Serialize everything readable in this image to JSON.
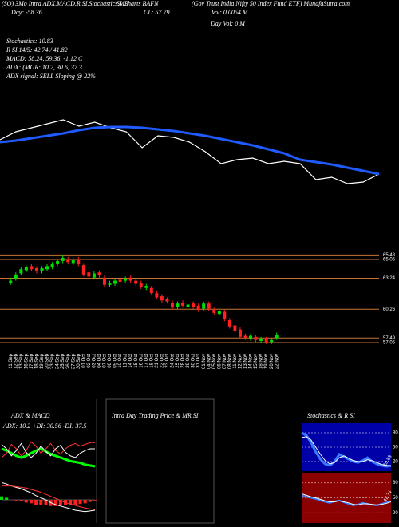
{
  "header": {
    "title_left": "(SO) 3Mo Intra ADX,MACD,R SI,Stochastics,MR",
    "title_mid": "SI Charts BAFN",
    "title_right": "(Gov Trust India Nifty 50 Index Fund ETF) MunafaSutra.com",
    "day": "Day: -58.36",
    "close": "CL: 57.79",
    "vol": "Vol: 0.0054 M",
    "day_vol": "Day Vol: 0  M"
  },
  "info": [
    "Stochastics: 10.83",
    "R SI 14/5: 42.74 / 41.82",
    "MACD: 58.24, 59.36, -1.12 C",
    "ADX:    (MGR: 10.2, 30.6, 37.3",
    "ADX  signal: SELL Sloping @ 22%"
  ],
  "panels": {
    "adx_title": "ADX & MACD",
    "intraday_title": "Intra Day Trading Price & MR SI",
    "stoch_title": "Stochastics & R SI"
  },
  "chart_data": [
    {
      "type": "line",
      "ylim": [
        0,
        130
      ],
      "series": [
        {
          "color": "#ffffff",
          "width": 1.2,
          "values": [
            85,
            95,
            100,
            105,
            110,
            102,
            107,
            100,
            95,
            75,
            90,
            88,
            82,
            70,
            55,
            60,
            62,
            55,
            58,
            55,
            35,
            38,
            30,
            32,
            42
          ]
        },
        {
          "color": "#1f5bff",
          "width": 3,
          "values": [
            82,
            84,
            87,
            90,
            93,
            97,
            100,
            101,
            101,
            100,
            98,
            96,
            93,
            90,
            86,
            82,
            78,
            73,
            68,
            60,
            57,
            54,
            50,
            46,
            42
          ]
        }
      ]
    },
    {
      "type": "candlestick",
      "ylim": [
        56.2,
        66.2
      ],
      "up_color": "#00e000",
      "down_color": "#ff2020",
      "level_color": "#c87533",
      "levels": [
        65.48,
        65.05,
        63.24,
        60.26,
        57.49,
        57.05
      ],
      "x": [
        "11 Sep",
        "12 Sep",
        "13 Sep",
        "16 Sep",
        "17 Sep",
        "18 Sep",
        "19 Sep",
        "20 Sep",
        "23 Sep",
        "24 Sep",
        "25 Sep",
        "26 Sep",
        "27 Sep",
        "30 Sep",
        "01 Oct",
        "02 Oct",
        "03 Oct",
        "04 Oct",
        "07 Oct",
        "08 Oct",
        "09 Oct",
        "10 Oct",
        "11 Oct",
        "14 Oct",
        "15 Oct",
        "16 Oct",
        "17 Oct",
        "18 Oct",
        "21 Oct",
        "22 Oct",
        "23 Oct",
        "24 Oct",
        "25 Oct",
        "28 Oct",
        "29 Oct",
        "30 Oct",
        "31 Oct",
        "01 Nov",
        "04 Nov",
        "05 Nov",
        "06 Nov",
        "07 Nov",
        "08 Nov",
        "11 Nov",
        "12 Nov",
        "13 Nov",
        "14 Nov",
        "15 Nov",
        "18 Nov",
        "19 Nov",
        "20 Nov",
        "22 Nov"
      ],
      "open": [
        62.8,
        63.2,
        63.7,
        64.0,
        64.4,
        64.2,
        63.9,
        64.1,
        64.3,
        64.6,
        64.9,
        65.1,
        64.7,
        65.1,
        64.5,
        63.8,
        63.3,
        63.8,
        63.3,
        62.6,
        62.7,
        63.1,
        63.0,
        63.3,
        63.0,
        62.8,
        62.3,
        62.3,
        61.8,
        61.5,
        61.2,
        60.9,
        60.5,
        60.9,
        60.5,
        60.8,
        60.6,
        60.3,
        60.8,
        60.2,
        59.8,
        60.0,
        59.2,
        58.7,
        58.3,
        57.7,
        57.4,
        57.6,
        57.2,
        57.4,
        57.1,
        57.5
      ],
      "high": [
        63.3,
        63.8,
        64.3,
        64.5,
        64.6,
        64.4,
        64.4,
        64.6,
        64.8,
        65.1,
        65.5,
        65.3,
        65.2,
        65.3,
        64.7,
        64.0,
        63.9,
        64.0,
        63.5,
        63.0,
        63.2,
        63.3,
        63.4,
        63.5,
        63.2,
        63.0,
        62.7,
        62.5,
        62.0,
        61.7,
        61.4,
        61.1,
        61.0,
        61.1,
        60.9,
        61.0,
        60.8,
        61.0,
        61.0,
        60.4,
        60.3,
        60.2,
        59.4,
        58.9,
        58.5,
        57.9,
        57.9,
        57.8,
        57.6,
        57.6,
        57.5,
        58.0
      ],
      "low": [
        62.6,
        63.0,
        63.5,
        63.8,
        63.9,
        63.7,
        63.7,
        63.9,
        64.1,
        64.4,
        64.7,
        64.6,
        64.5,
        64.4,
        63.4,
        63.2,
        63.1,
        63.3,
        62.4,
        62.4,
        62.5,
        62.7,
        62.8,
        62.8,
        62.5,
        62.2,
        62.1,
        61.6,
        61.2,
        60.9,
        60.8,
        60.2,
        60.3,
        60.4,
        60.3,
        60.3,
        60.0,
        60.1,
        60.1,
        59.7,
        59.6,
        59.1,
        58.4,
        58.0,
        57.4,
        57.3,
        57.2,
        57.1,
        57.0,
        56.9,
        56.9,
        57.3
      ],
      "close": [
        63.0,
        63.6,
        64.1,
        64.3,
        64.1,
        63.9,
        64.2,
        64.4,
        64.6,
        64.9,
        65.2,
        64.8,
        65.0,
        64.6,
        63.6,
        63.4,
        63.7,
        63.5,
        62.6,
        62.8,
        63.0,
        62.9,
        63.2,
        63.0,
        62.7,
        62.4,
        62.5,
        61.8,
        61.4,
        61.1,
        61.0,
        60.4,
        60.8,
        60.6,
        60.7,
        60.5,
        60.2,
        60.8,
        60.3,
        59.9,
        60.1,
        59.3,
        58.6,
        58.2,
        57.6,
        57.5,
        57.7,
        57.3,
        57.4,
        57.1,
        57.3,
        57.8
      ]
    },
    {
      "type": "line",
      "subtitle": "ADX: 10.2  +DI: 30.56  -DI: 37.5",
      "ylim": [
        0,
        50
      ],
      "series": [
        {
          "color": "#00ff00",
          "width": 3,
          "values": [
            30,
            28,
            25,
            22,
            20,
            22,
            25,
            28,
            30,
            27,
            24,
            22,
            20,
            18,
            16,
            15,
            14,
            12,
            11,
            10
          ]
        },
        {
          "color": "#ff3333",
          "width": 1,
          "values": [
            20,
            25,
            35,
            30,
            22,
            28,
            38,
            33,
            25,
            30,
            36,
            28,
            24,
            30,
            34,
            36,
            33,
            35,
            37,
            37
          ]
        },
        {
          "color": "#ffffff",
          "width": 1,
          "values": [
            35,
            30,
            22,
            28,
            36,
            26,
            20,
            25,
            33,
            27,
            22,
            30,
            34,
            26,
            22,
            20,
            25,
            28,
            30,
            30
          ]
        }
      ]
    },
    {
      "type": "macd",
      "ylim": [
        -3,
        3
      ],
      "up_color": "#00e000",
      "down_color": "#ff2020",
      "bars": [
        0.5,
        0.3,
        0,
        -0.1,
        -0.2,
        -0.4,
        -0.5,
        -0.7,
        -0.8,
        -0.8,
        -0.9,
        -0.9,
        -0.8,
        -0.7,
        -0.7,
        -0.7,
        -0.6,
        -0.5,
        -0.3,
        -0.1
      ],
      "series": [
        {
          "color": "#ffffff",
          "width": 1,
          "values": [
            2.5,
            2.3,
            2.0,
            1.8,
            1.6,
            1.3,
            1.0,
            0.6,
            0.3,
            0.0,
            -0.4,
            -0.7,
            -0.9,
            -1.1,
            -1.3,
            -1.5,
            -1.6,
            -1.7,
            -1.6,
            -1.5
          ]
        },
        {
          "color": "#ff3333",
          "width": 1,
          "values": [
            2.0,
            2.0,
            2.0,
            1.9,
            1.8,
            1.7,
            1.5,
            1.3,
            1.1,
            0.8,
            0.5,
            0.2,
            -0.1,
            -0.4,
            -0.6,
            -0.8,
            -1.0,
            -1.2,
            -1.3,
            -1.4
          ]
        }
      ]
    },
    {
      "type": "line",
      "background": "#0000a8",
      "ylim": [
        0,
        100
      ],
      "yticks": [
        80,
        50,
        20
      ],
      "annotation": "10.83",
      "series": [
        {
          "color": "#3a7bff",
          "width": 3,
          "values": [
            80,
            75,
            60,
            40,
            25,
            15,
            12,
            20,
            35,
            30,
            25,
            20,
            18,
            22,
            28,
            20,
            15,
            12,
            10,
            11
          ]
        },
        {
          "color": "#ffffff",
          "width": 1,
          "values": [
            70,
            72,
            65,
            50,
            35,
            22,
            15,
            18,
            28,
            32,
            27,
            22,
            20,
            20,
            24,
            22,
            18,
            14,
            12,
            11
          ]
        }
      ]
    },
    {
      "type": "line",
      "background": "#8b0000",
      "ylim": [
        0,
        100
      ],
      "yticks": [
        80,
        50,
        20
      ],
      "annotation": "42.74",
      "series": [
        {
          "color": "#3a7bff",
          "width": 2,
          "values": [
            55,
            52,
            50,
            48,
            45,
            42,
            40,
            43,
            45,
            41,
            38,
            35,
            37,
            40,
            38,
            36,
            35,
            38,
            41,
            43
          ]
        },
        {
          "color": "#ffffff",
          "width": 1,
          "values": [
            58,
            55,
            52,
            50,
            47,
            44,
            42,
            42,
            44,
            42,
            40,
            37,
            36,
            38,
            38,
            37,
            36,
            37,
            39,
            42
          ]
        }
      ]
    }
  ]
}
